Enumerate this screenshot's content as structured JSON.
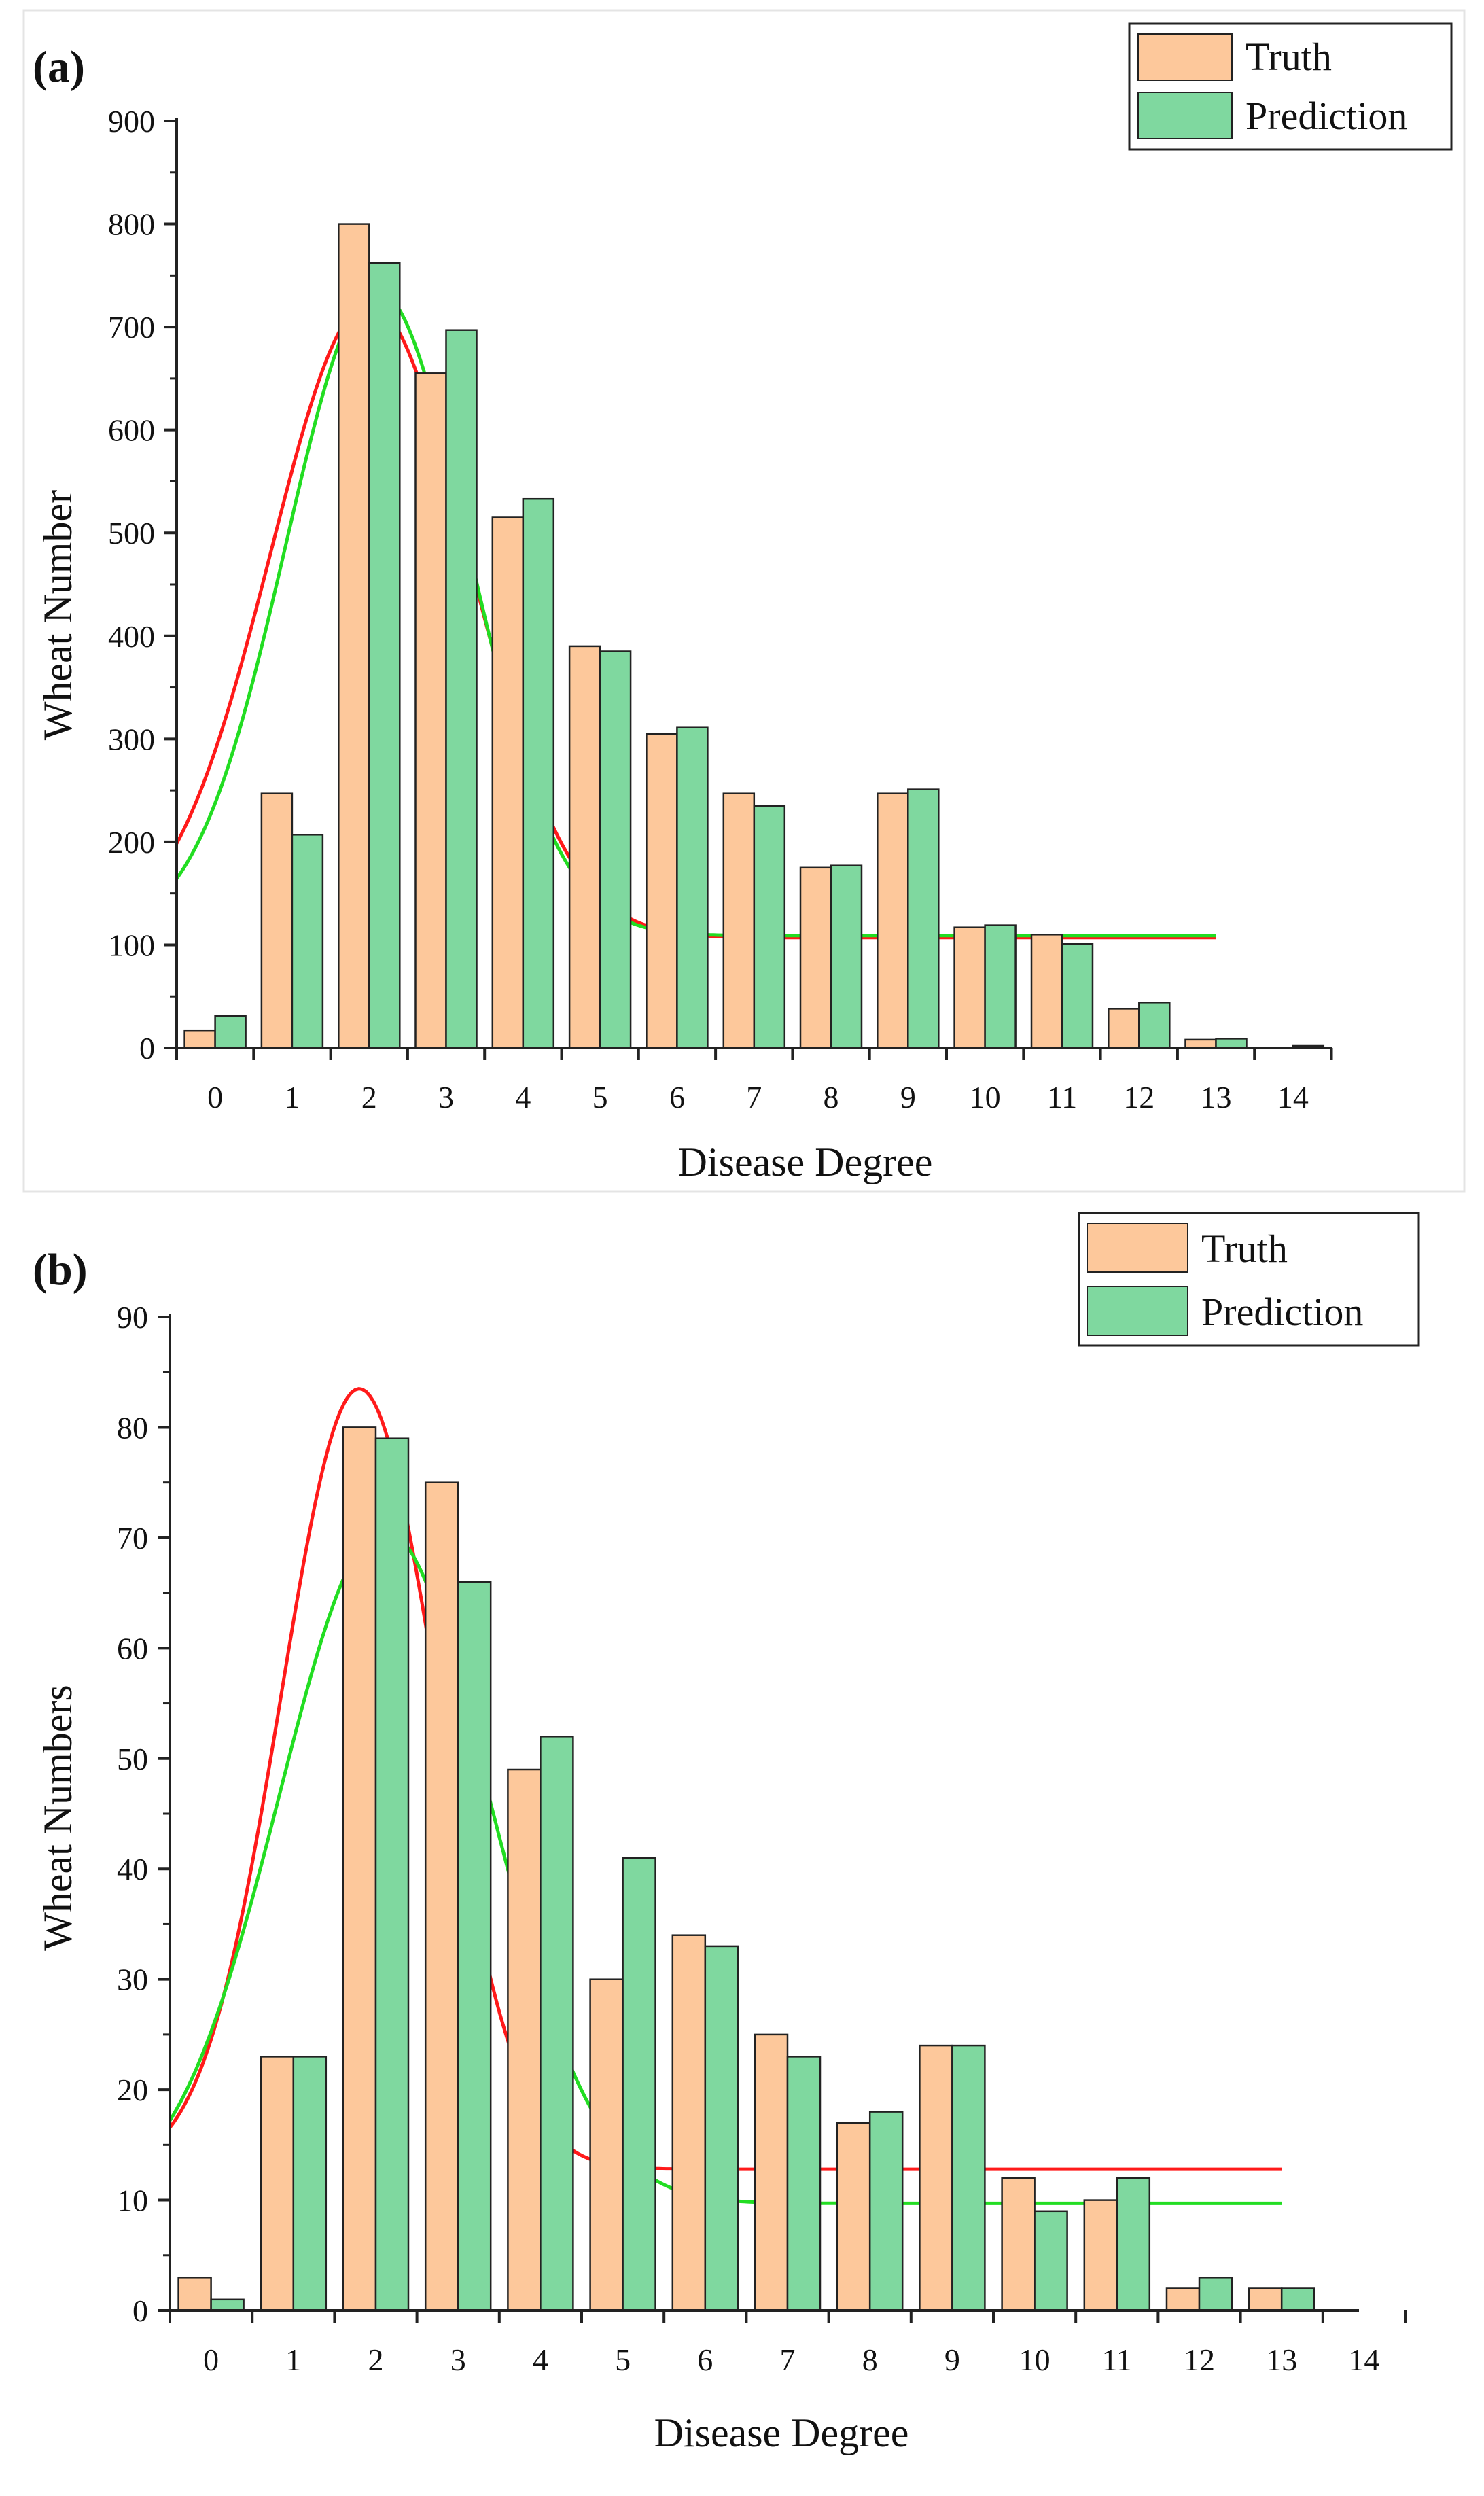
{
  "colors": {
    "truth": "#fdc89b",
    "prediction": "#7fd89f",
    "truth_fit": "#ff1a1a",
    "prediction_fit": "#22dd22",
    "axis": "#222222"
  },
  "chart_data": [
    {
      "panel": "(a)",
      "type": "bar",
      "xlabel": "Disease Degree",
      "ylabel": "Wheat Number",
      "ylim": [
        0,
        900
      ],
      "yticks": [
        0,
        100,
        200,
        300,
        400,
        500,
        600,
        700,
        800,
        900
      ],
      "categories": [
        "0",
        "1",
        "2",
        "3",
        "4",
        "5",
        "6",
        "7",
        "8",
        "9",
        "10",
        "11",
        "12",
        "13",
        "14"
      ],
      "legend": {
        "position": "top-right",
        "entries": [
          "Truth",
          "Prediction"
        ]
      },
      "series": [
        {
          "name": "Truth",
          "values": [
            17,
            247,
            800,
            655,
            515,
            390,
            305,
            247,
            175,
            247,
            117,
            110,
            38,
            8,
            0
          ]
        },
        {
          "name": "Prediction",
          "values": [
            31,
            207,
            762,
            697,
            533,
            385,
            311,
            235,
            177,
            251,
            119,
            101,
            44,
            9,
            2
          ]
        }
      ],
      "fits": [
        {
          "name": "Truth fit",
          "type": "gaussian",
          "baseline": 107,
          "amplitude": 616,
          "center": 2.0,
          "sigma": 1.28,
          "x_range": [
            -0.5,
            13
          ]
        },
        {
          "name": "Prediction fit",
          "type": "gaussian",
          "baseline": 109,
          "amplitude": 627,
          "center": 2.1,
          "sigma": 1.18,
          "x_range": [
            -0.5,
            13
          ]
        }
      ]
    },
    {
      "panel": "(b)",
      "type": "bar",
      "xlabel": "Disease Degree",
      "ylabel": "Wheat Numbers",
      "ylim": [
        0,
        90
      ],
      "yticks": [
        0,
        10,
        20,
        30,
        40,
        50,
        60,
        70,
        80,
        90
      ],
      "categories": [
        "0",
        "1",
        "2",
        "3",
        "4",
        "5",
        "6",
        "7",
        "8",
        "9",
        "10",
        "11",
        "12",
        "13",
        "14"
      ],
      "legend": {
        "position": "top-right",
        "entries": [
          "Truth",
          "Prediction"
        ]
      },
      "series": [
        {
          "name": "Truth",
          "values": [
            3,
            23,
            80,
            75,
            49,
            30,
            34,
            25,
            17,
            24,
            12,
            10,
            2,
            2,
            0
          ]
        },
        {
          "name": "Prediction",
          "values": [
            1,
            23,
            79,
            66,
            52,
            41,
            33,
            23,
            18,
            24,
            9,
            12,
            3,
            2,
            0
          ]
        }
      ],
      "fits": [
        {
          "name": "Truth fit",
          "type": "gaussian",
          "baseline": 12.8,
          "amplitude": 70.7,
          "center": 1.8,
          "sigma": 0.95,
          "x_range": [
            -0.5,
            13
          ]
        },
        {
          "name": "Prediction fit",
          "type": "gaussian",
          "baseline": 9.7,
          "amplitude": 61.0,
          "center": 2.1,
          "sigma": 1.27,
          "x_range": [
            -0.5,
            13
          ]
        }
      ]
    }
  ]
}
